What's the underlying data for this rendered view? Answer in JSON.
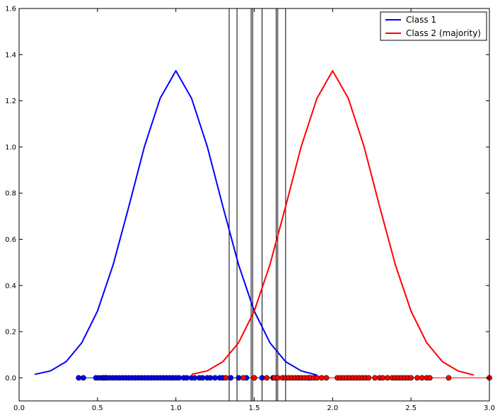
{
  "chart_data": {
    "type": "line",
    "title": "",
    "xlabel": "",
    "ylabel": "",
    "xlim": [
      0.0,
      3.0
    ],
    "ylim": [
      -0.1,
      1.6
    ],
    "x_ticks": [
      "0.0",
      "0.5",
      "1.0",
      "1.5",
      "2.0",
      "2.5",
      "3.0"
    ],
    "y_ticks": [
      "0.0",
      "0.2",
      "0.4",
      "0.6",
      "0.8",
      "1.0",
      "1.2",
      "1.4",
      "1.6"
    ],
    "grid": false,
    "legend_position": "top-right",
    "series": [
      {
        "name": "Class 1",
        "kind": "curve",
        "color": "#0000ff",
        "x": [
          0.1,
          0.2,
          0.3,
          0.4,
          0.5,
          0.6,
          0.7,
          0.8,
          0.9,
          1.0,
          1.1,
          1.2,
          1.3,
          1.4,
          1.5,
          1.6,
          1.7,
          1.8,
          1.9
        ],
        "y": [
          0.015,
          0.03,
          0.07,
          0.152,
          0.289,
          0.49,
          0.742,
          1.003,
          1.211,
          1.33,
          1.211,
          1.003,
          0.742,
          0.49,
          0.289,
          0.152,
          0.07,
          0.03,
          0.012
        ]
      },
      {
        "name": "Class 2 (majority)",
        "kind": "curve",
        "color": "#ff0000",
        "x": [
          1.1,
          1.2,
          1.3,
          1.4,
          1.5,
          1.6,
          1.7,
          1.8,
          1.9,
          2.0,
          2.1,
          2.2,
          2.3,
          2.4,
          2.5,
          2.6,
          2.7,
          2.8,
          2.9
        ],
        "y": [
          0.015,
          0.03,
          0.07,
          0.152,
          0.289,
          0.49,
          0.742,
          1.003,
          1.211,
          1.33,
          1.211,
          1.003,
          0.742,
          0.49,
          0.289,
          0.152,
          0.07,
          0.03,
          0.012
        ]
      }
    ],
    "samples": [
      {
        "class": "Class 1",
        "color": "#0000ff",
        "y": 0.0,
        "x": [
          0.38,
          0.41,
          0.49,
          0.51,
          0.53,
          0.54,
          0.55,
          0.56,
          0.58,
          0.6,
          0.62,
          0.64,
          0.66,
          0.68,
          0.7,
          0.72,
          0.74,
          0.76,
          0.78,
          0.8,
          0.82,
          0.84,
          0.86,
          0.88,
          0.9,
          0.92,
          0.94,
          0.96,
          0.98,
          1.0,
          1.02,
          1.05,
          1.07,
          1.1,
          1.12,
          1.15,
          1.17,
          1.2,
          1.22,
          1.25,
          1.28,
          1.3,
          1.35,
          1.4,
          1.45,
          1.5,
          1.55,
          1.62,
          1.7,
          1.78,
          1.85
        ]
      },
      {
        "class": "Class 2 (majority)",
        "color": "#ff0000",
        "y": 0.0,
        "x": [
          1.32,
          1.43,
          1.5,
          1.58,
          1.63,
          1.65,
          1.68,
          1.7,
          1.72,
          1.74,
          1.76,
          1.78,
          1.8,
          1.82,
          1.84,
          1.86,
          1.88,
          1.9,
          1.93,
          1.96,
          2.03,
          2.05,
          2.07,
          2.09,
          2.11,
          2.13,
          2.15,
          2.17,
          2.19,
          2.21,
          2.23,
          2.27,
          2.3,
          2.32,
          2.35,
          2.38,
          2.4,
          2.42,
          2.44,
          2.46,
          2.48,
          2.5,
          2.54,
          2.57,
          2.6,
          2.62,
          2.74,
          3.0
        ]
      }
    ],
    "vertical_lines": {
      "color": "#000000",
      "x": [
        1.34,
        1.39,
        1.48,
        1.49,
        1.55,
        1.64,
        1.65,
        1.7
      ]
    }
  }
}
